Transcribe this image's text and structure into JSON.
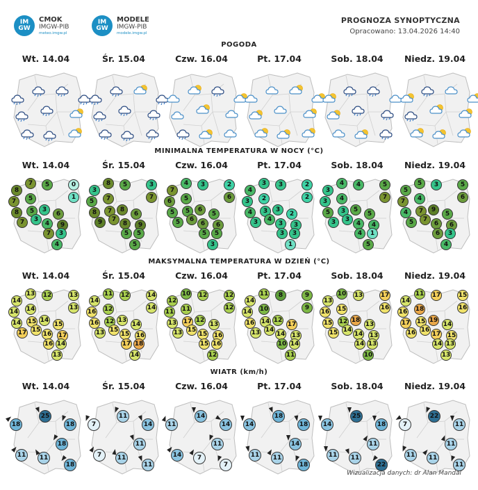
{
  "header": {
    "logo1": {
      "badge": [
        "IM",
        "GW"
      ],
      "name": "CMOK",
      "org": "IMGW-PIB",
      "url": "meteo.imgw.pl"
    },
    "logo2": {
      "badge": [
        "IM",
        "GW"
      ],
      "name": "MODELE",
      "org": "IMGW-PIB",
      "url": "modele.imgw.pl"
    },
    "title": "PROGNOZA SYNOPTYCZNA",
    "subtitle": "Opracowano: 13.04.2026 14:40"
  },
  "days": [
    "Wt. 14.04",
    "Śr. 15.04",
    "Czw. 16.04",
    "Pt. 17.04",
    "Sob. 18.04",
    "Niedz. 19.04"
  ],
  "sections": {
    "weather": "POGODA",
    "tmin": "MINIMALNA TEMPERATURA W NOCY (°C)",
    "tmax": "MAKSYMALNA TEMPERATURA W DZIEŃ (°C)",
    "wind": "WIATR (km/h)"
  },
  "weather_icons": [
    [
      "rain-cloud",
      "rain-cloud",
      "rain-cloud",
      "rain-cloud",
      "rain-cloud",
      "rain-cloud",
      "partly-sunny",
      "rain-cloud",
      "rain-cloud",
      "partly-sunny"
    ],
    [
      "rain-cloud",
      "rain-cloud",
      "partly-sunny",
      "rain-cloud",
      "rain-cloud",
      "rain-cloud",
      "rain-cloud",
      "rain-cloud",
      "rain-cloud",
      "rain-cloud"
    ],
    [
      "cloud",
      "partly-sunny",
      "rain-cloud",
      "partly-sunny",
      "cloud",
      "partly-sunny",
      "cloud",
      "rain-cloud",
      "partly-sunny",
      "cloud"
    ],
    [
      "cloud",
      "cloud",
      "partly-sunny",
      "partly-sunny",
      "partly-sunny",
      "cloud",
      "partly-sunny",
      "partly-sunny",
      "partly-sunny",
      "partly-sunny"
    ],
    [
      "partly-sunny",
      "rain-cloud",
      "rain-cloud",
      "cloud",
      "partly-sunny",
      "rain-cloud",
      "rain-cloud",
      "cloud",
      "partly-sunny",
      "rain-cloud"
    ],
    [
      "partly-sunny",
      "rain-cloud",
      "cloud",
      "partly-sunny",
      "rain-cloud",
      "partly-sunny",
      "partly-sunny",
      "partly-sunny",
      "partly-sunny",
      "partly-sunny"
    ]
  ],
  "tmin": [
    [
      8,
      7,
      5,
      0,
      7,
      5,
      1,
      8,
      5,
      3,
      6,
      7,
      3,
      4,
      9,
      7,
      3,
      4
    ],
    [
      3,
      8,
      5,
      3,
      5,
      7,
      7,
      8,
      7,
      8,
      6,
      9,
      7,
      8,
      9,
      5,
      5,
      5
    ],
    [
      7,
      4,
      3,
      2,
      6,
      5,
      6,
      5,
      5,
      6,
      5,
      5,
      6,
      6,
      6,
      5,
      5,
      3
    ],
    [
      4,
      3,
      3,
      2,
      3,
      2,
      2,
      4,
      3,
      3,
      2,
      3,
      4,
      3,
      3,
      3,
      3,
      1
    ],
    [
      3,
      4,
      4,
      5,
      3,
      4,
      7,
      5,
      3,
      5,
      5,
      3,
      3,
      4,
      4,
      4,
      1,
      5
    ],
    [
      5,
      5,
      3,
      5,
      7,
      4,
      6,
      4,
      7,
      9,
      5,
      5,
      7,
      6,
      6,
      6,
      3,
      4
    ]
  ],
  "tmax": [
    [
      14,
      13,
      12,
      13,
      14,
      14,
      13,
      14,
      15,
      14,
      15,
      17,
      15,
      16,
      17,
      16,
      14,
      13
    ],
    [
      14,
      11,
      12,
      14,
      16,
      12,
      14,
      16,
      12,
      13,
      14,
      13,
      15,
      15,
      16,
      17,
      18,
      14
    ],
    [
      12,
      10,
      12,
      12,
      11,
      11,
      12,
      13,
      17,
      12,
      13,
      13,
      15,
      15,
      16,
      15,
      16,
      12
    ],
    [
      14,
      11,
      8,
      9,
      14,
      10,
      9,
      16,
      14,
      12,
      17,
      13,
      14,
      14,
      13,
      10,
      14,
      11
    ],
    [
      13,
      10,
      13,
      17,
      16,
      15,
      16,
      15,
      12,
      18,
      13,
      15,
      14,
      14,
      13,
      14,
      13,
      10
    ],
    [
      14,
      11,
      17,
      15,
      16,
      18,
      16,
      17,
      15,
      19,
      14,
      16,
      16,
      17,
      15,
      14,
      13,
      13
    ]
  ],
  "wind": [
    [
      18,
      25,
      18,
      18,
      11,
      11,
      18
    ],
    [
      7,
      11,
      14,
      11,
      7,
      11,
      11
    ],
    [
      11,
      14,
      14,
      11,
      14,
      7,
      7
    ],
    [
      14,
      18,
      18,
      14,
      11,
      11,
      18
    ],
    [
      14,
      25,
      18,
      11,
      11,
      11,
      22
    ],
    [
      7,
      22,
      11,
      11,
      11,
      11,
      11
    ]
  ],
  "credit": "Wizualizacja danych: dr Alan Mandal"
}
